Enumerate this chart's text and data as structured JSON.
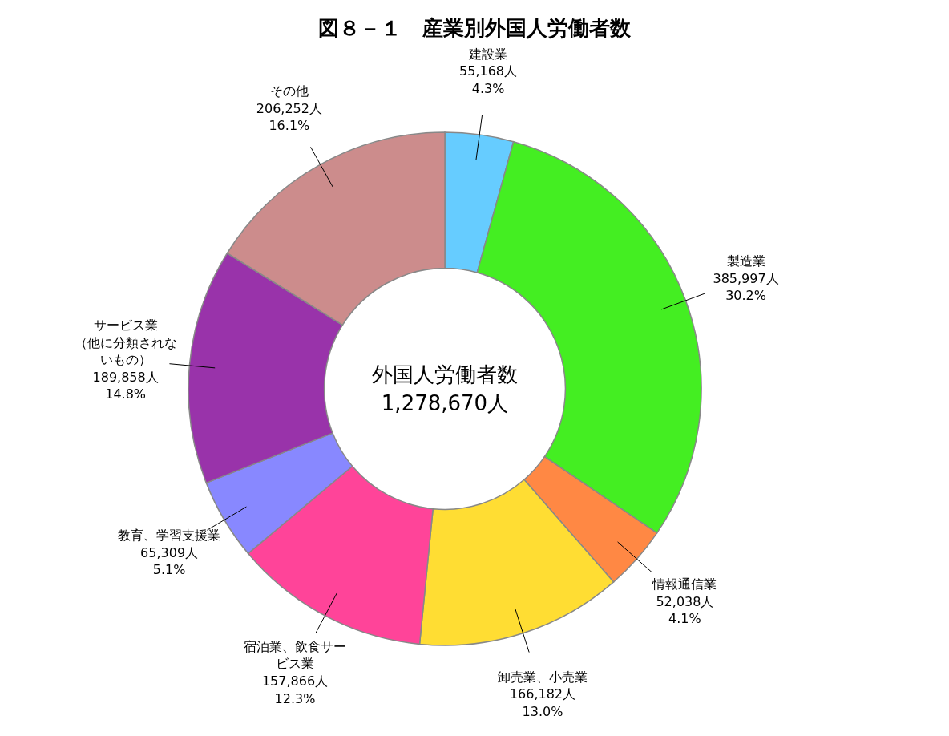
{
  "chart_data": {
    "type": "donut",
    "title": "図８－１　産業別外国人労働者数",
    "categories": [
      "建設業",
      "製造業",
      "情報通信業",
      "卸売業、小売業",
      "宿泊業、飲食サービス業",
      "教育、学習支援業",
      "サービス業（他に分類されないもの）",
      "その他"
    ],
    "values": [
      55168,
      385997,
      52038,
      166182,
      157866,
      65309,
      189858,
      206252
    ],
    "colors": [
      "#66ccff",
      "#44ee22",
      "#ff8844",
      "#ffdd33",
      "#ff4499",
      "#8888ff",
      "#9933aa",
      "#cc8c8c"
    ],
    "value_labels": [
      "55,168人\n4.3%",
      "385,997人\n30.2%",
      "52,038人\n4.1%",
      "166,182人\n13.0%",
      "157,866人\n12.3%",
      "65,309人\n5.1%",
      "189,858人\n14.8%",
      "206,252人\n16.1%"
    ],
    "annotations": [
      "外国人労働者数\n1,278,670人"
    ]
  }
}
